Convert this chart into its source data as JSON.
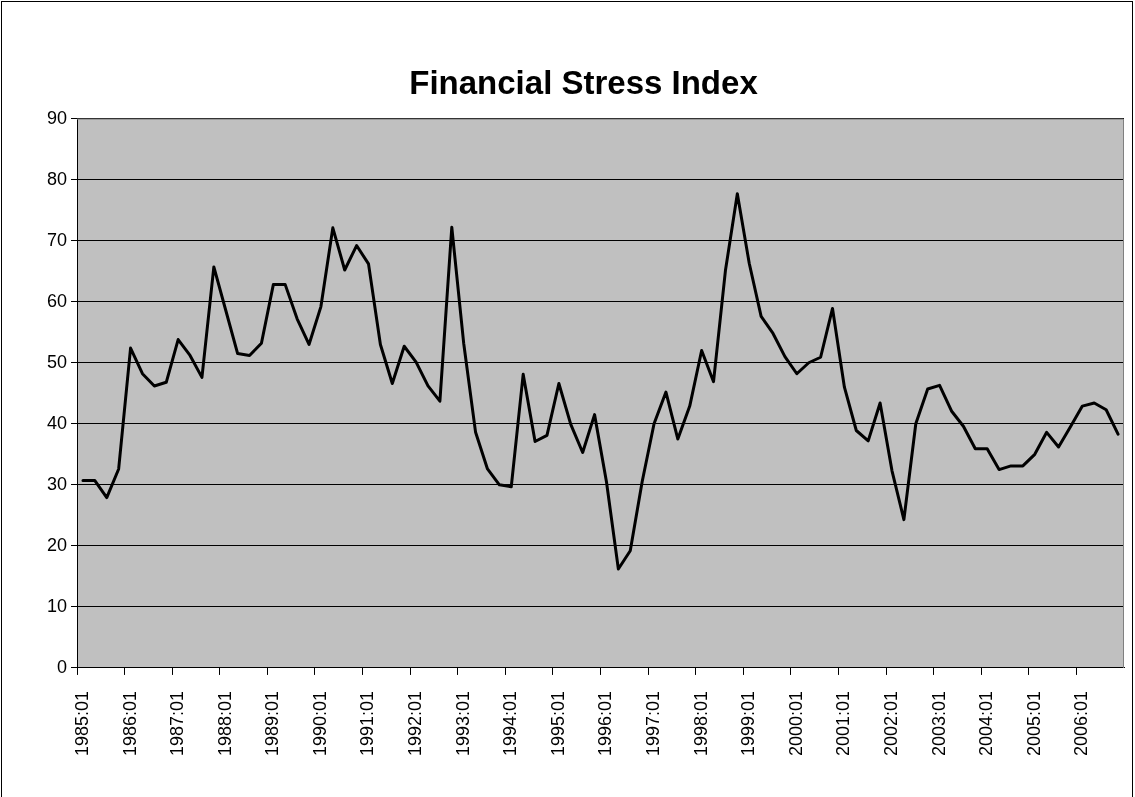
{
  "chart_data": {
    "type": "line",
    "title": "Financial Stress Index",
    "categories": [
      "1985:01",
      null,
      null,
      null,
      "1986:01",
      null,
      null,
      null,
      "1987:01",
      null,
      null,
      null,
      "1988:01",
      null,
      null,
      null,
      "1989:01",
      null,
      null,
      null,
      "1990:01",
      null,
      null,
      null,
      "1991:01",
      null,
      null,
      null,
      "1992:01",
      null,
      null,
      null,
      "1993:01",
      null,
      null,
      null,
      "1994:01",
      null,
      null,
      null,
      "1995:01",
      null,
      null,
      null,
      "1996:01",
      null,
      null,
      null,
      "1997:01",
      null,
      null,
      null,
      "1998:01",
      null,
      null,
      null,
      "1999:01",
      null,
      null,
      null,
      "2000:01",
      null,
      null,
      null,
      "2001:01",
      null,
      null,
      null,
      "2002:01",
      null,
      null,
      null,
      "2003:01",
      null,
      null,
      null,
      "2004:01",
      null,
      null,
      null,
      "2005:01",
      null,
      null,
      null,
      "2006:01",
      null,
      null,
      null
    ],
    "values": [
      30.7,
      30.7,
      27.9,
      32.6,
      52.4,
      48.2,
      46.2,
      46.8,
      53.8,
      51.2,
      47.6,
      65.7,
      58.6,
      51.5,
      51.2,
      53.2,
      62.8,
      62.8,
      57.2,
      53.0,
      59.2,
      72.1,
      65.2,
      69.2,
      66.2,
      53.0,
      46.6,
      52.7,
      50.1,
      46.2,
      43.7,
      72.2,
      53.2,
      38.6,
      32.6,
      30.0,
      29.7,
      48.1,
      37.1,
      38.1,
      46.6,
      39.9,
      35.3,
      41.5,
      30.5,
      16.2,
      19.2,
      30.5,
      40.0,
      45.2,
      37.5,
      42.9,
      52.0,
      46.9,
      65.1,
      77.7,
      66.3,
      57.6,
      54.8,
      51.0,
      48.2,
      50.0,
      50.9,
      58.9,
      46.0,
      38.9,
      37.2,
      43.4,
      32.3,
      24.3,
      40.0,
      45.7,
      46.3,
      42.1,
      39.6,
      35.9,
      35.9,
      32.5,
      33.1,
      33.1,
      35.0,
      38.6,
      36.2,
      39.5,
      42.9,
      43.4,
      42.3,
      38.3
    ],
    "color": "#000000",
    "ylim": [
      0,
      90
    ],
    "yticks": [
      0,
      10,
      20,
      30,
      40,
      50,
      60,
      70,
      80,
      90
    ],
    "grid": "y"
  }
}
